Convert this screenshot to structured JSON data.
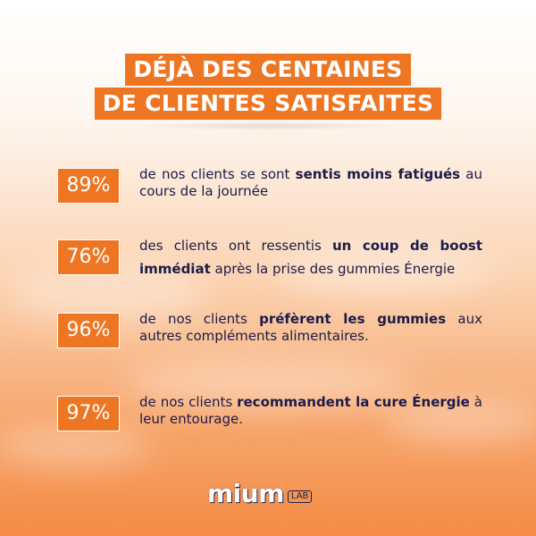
{
  "title": {
    "line1": "DÉJÀ DES CENTAINES",
    "line2": "DE CLIENTES SATISFAITES"
  },
  "stats": [
    {
      "percent": "89%",
      "text_parts": [
        {
          "t": "de nos clients se sont ",
          "b": false
        },
        {
          "t": "sentis moins fatigués",
          "b": true
        },
        {
          "t": " au cours de la journée",
          "b": false
        }
      ]
    },
    {
      "percent": "76%",
      "text_parts": [
        {
          "t": "des clients ont ressentis ",
          "b": false
        },
        {
          "t": "un coup de boost immédiat",
          "b": true
        },
        {
          "t": " après la prise des gummies Énergie",
          "b": false
        }
      ]
    },
    {
      "percent": "96%",
      "text_parts": [
        {
          "t": "de nos clients ",
          "b": false
        },
        {
          "t": "préfèrent les gummies",
          "b": true
        },
        {
          "t": " aux autres compléments alimentaires.",
          "b": false
        }
      ]
    },
    {
      "percent": "97%",
      "text_parts": [
        {
          "t": "de nos clients ",
          "b": false
        },
        {
          "t": "recommandent la cure Énergie",
          "b": true
        },
        {
          "t": " à leur entourage.",
          "b": false
        }
      ]
    }
  ],
  "logo": {
    "brand": "mium",
    "suffix": "LAB"
  },
  "colors": {
    "accent": "#ee7623",
    "text": "#1c1c4a",
    "white": "#ffffff"
  }
}
